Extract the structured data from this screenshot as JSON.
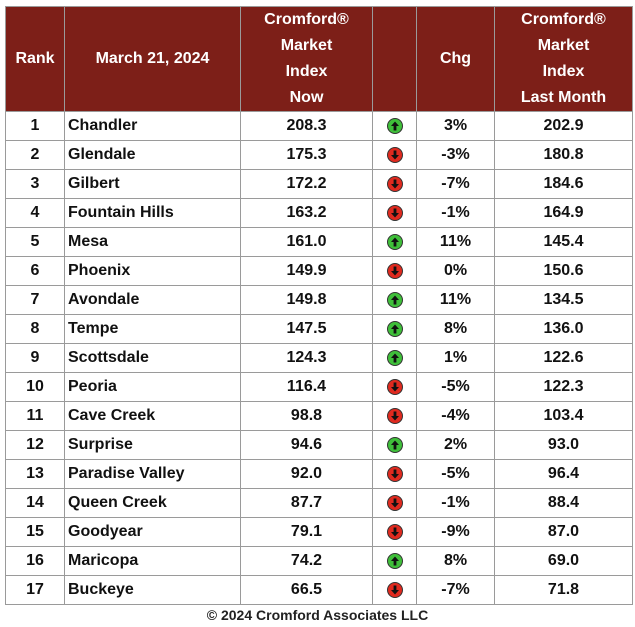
{
  "header": {
    "rank": "Rank",
    "date": "March 21, 2024",
    "now": [
      "Cromford®",
      "Market",
      "Index",
      "Now"
    ],
    "chg": "Chg",
    "last": [
      "Cromford®",
      "Market",
      "Index",
      "Last Month"
    ]
  },
  "colors": {
    "header_bg": "#7d1f18",
    "up": "#3fbf3a",
    "down": "#e02a1f"
  },
  "rows": [
    {
      "rank": "1",
      "town": "Chandler",
      "now": "208.3",
      "dir": "up",
      "chg": "3%",
      "last": "202.9"
    },
    {
      "rank": "2",
      "town": "Glendale",
      "now": "175.3",
      "dir": "down",
      "chg": "-3%",
      "last": "180.8"
    },
    {
      "rank": "3",
      "town": "Gilbert",
      "now": "172.2",
      "dir": "down",
      "chg": "-7%",
      "last": "184.6"
    },
    {
      "rank": "4",
      "town": "Fountain Hills",
      "now": "163.2",
      "dir": "down",
      "chg": "-1%",
      "last": "164.9"
    },
    {
      "rank": "5",
      "town": "Mesa",
      "now": "161.0",
      "dir": "up",
      "chg": "11%",
      "last": "145.4"
    },
    {
      "rank": "6",
      "town": "Phoenix",
      "now": "149.9",
      "dir": "down",
      "chg": "0%",
      "last": "150.6"
    },
    {
      "rank": "7",
      "town": "Avondale",
      "now": "149.8",
      "dir": "up",
      "chg": "11%",
      "last": "134.5"
    },
    {
      "rank": "8",
      "town": "Tempe",
      "now": "147.5",
      "dir": "up",
      "chg": "8%",
      "last": "136.0"
    },
    {
      "rank": "9",
      "town": "Scottsdale",
      "now": "124.3",
      "dir": "up",
      "chg": "1%",
      "last": "122.6"
    },
    {
      "rank": "10",
      "town": "Peoria",
      "now": "116.4",
      "dir": "down",
      "chg": "-5%",
      "last": "122.3"
    },
    {
      "rank": "11",
      "town": "Cave Creek",
      "now": "98.8",
      "dir": "down",
      "chg": "-4%",
      "last": "103.4"
    },
    {
      "rank": "12",
      "town": "Surprise",
      "now": "94.6",
      "dir": "up",
      "chg": "2%",
      "last": "93.0"
    },
    {
      "rank": "13",
      "town": "Paradise Valley",
      "now": "92.0",
      "dir": "down",
      "chg": "-5%",
      "last": "96.4"
    },
    {
      "rank": "14",
      "town": "Queen Creek",
      "now": "87.7",
      "dir": "down",
      "chg": "-1%",
      "last": "88.4"
    },
    {
      "rank": "15",
      "town": "Goodyear",
      "now": "79.1",
      "dir": "down",
      "chg": "-9%",
      "last": "87.0"
    },
    {
      "rank": "16",
      "town": "Maricopa",
      "now": "74.2",
      "dir": "up",
      "chg": "8%",
      "last": "69.0"
    },
    {
      "rank": "17",
      "town": "Buckeye",
      "now": "66.5",
      "dir": "down",
      "chg": "-7%",
      "last": "71.8"
    }
  ],
  "footer": "© 2024 Cromford Associates LLC"
}
